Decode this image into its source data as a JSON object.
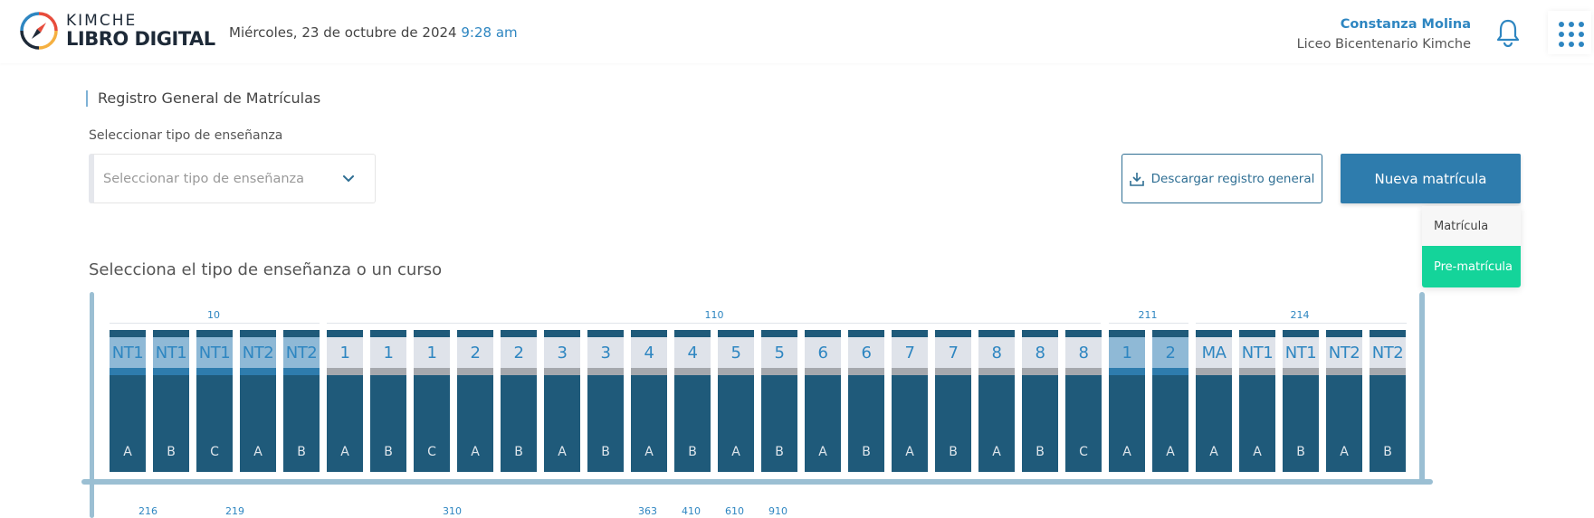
{
  "header": {
    "logo_top": "KIMCHE",
    "logo_bottom": "LIBRO DIGITAL",
    "date": "Miércoles, 23 de octubre de 2024",
    "time": "9:28 am",
    "user_name": "Constanza Molina",
    "school": "Liceo Bicentenario Kimche",
    "icons": [
      "compass-logo-icon",
      "bell-icon",
      "apps-grid-icon"
    ]
  },
  "page": {
    "title": "Registro General de Matrículas",
    "select_label": "Seleccionar tipo de enseñanza",
    "select_placeholder": "Seleccionar tipo de enseñanza",
    "download_label": "Descargar registro general",
    "new_label": "Nueva matrícula",
    "dropdown": [
      "Matrícula",
      "Pre-matrícula"
    ],
    "subtitle": "Selecciona el tipo de enseñanza o un curso"
  },
  "groups": [
    "10",
    "110",
    "211",
    "214"
  ],
  "courses": [
    {
      "label": "NT1",
      "letter": "A",
      "selected": true
    },
    {
      "label": "NT1",
      "letter": "B",
      "selected": true
    },
    {
      "label": "NT1",
      "letter": "C",
      "selected": true
    },
    {
      "label": "NT2",
      "letter": "A",
      "selected": true
    },
    {
      "label": "NT2",
      "letter": "B",
      "selected": true
    },
    {
      "label": "1",
      "letter": "A",
      "selected": false
    },
    {
      "label": "1",
      "letter": "B",
      "selected": false
    },
    {
      "label": "1",
      "letter": "C",
      "selected": false
    },
    {
      "label": "2",
      "letter": "A",
      "selected": false
    },
    {
      "label": "2",
      "letter": "B",
      "selected": false
    },
    {
      "label": "3",
      "letter": "A",
      "selected": false
    },
    {
      "label": "3",
      "letter": "B",
      "selected": false
    },
    {
      "label": "4",
      "letter": "A",
      "selected": false
    },
    {
      "label": "4",
      "letter": "B",
      "selected": false
    },
    {
      "label": "5",
      "letter": "A",
      "selected": false
    },
    {
      "label": "5",
      "letter": "B",
      "selected": false
    },
    {
      "label": "6",
      "letter": "A",
      "selected": false
    },
    {
      "label": "6",
      "letter": "B",
      "selected": false
    },
    {
      "label": "7",
      "letter": "A",
      "selected": false
    },
    {
      "label": "7",
      "letter": "B",
      "selected": false
    },
    {
      "label": "8",
      "letter": "A",
      "selected": false
    },
    {
      "label": "8",
      "letter": "B",
      "selected": false
    },
    {
      "label": "8",
      "letter": "C",
      "selected": false
    },
    {
      "label": "1",
      "letter": "A",
      "selected": true
    },
    {
      "label": "2",
      "letter": "A",
      "selected": true
    },
    {
      "label": "MA",
      "letter": "A",
      "selected": false
    },
    {
      "label": "NT1",
      "letter": "A",
      "selected": false
    },
    {
      "label": "NT1",
      "letter": "B",
      "selected": false
    },
    {
      "label": "NT2",
      "letter": "A",
      "selected": false
    },
    {
      "label": "NT2",
      "letter": "B",
      "selected": false
    }
  ],
  "bottom_groups": [
    "216",
    "219",
    "310",
    "363",
    "410",
    "610",
    "910"
  ],
  "colors": {
    "accent": "#2e86c1",
    "card": "#1f5a7a",
    "pre_matricula": "#14d49a"
  }
}
